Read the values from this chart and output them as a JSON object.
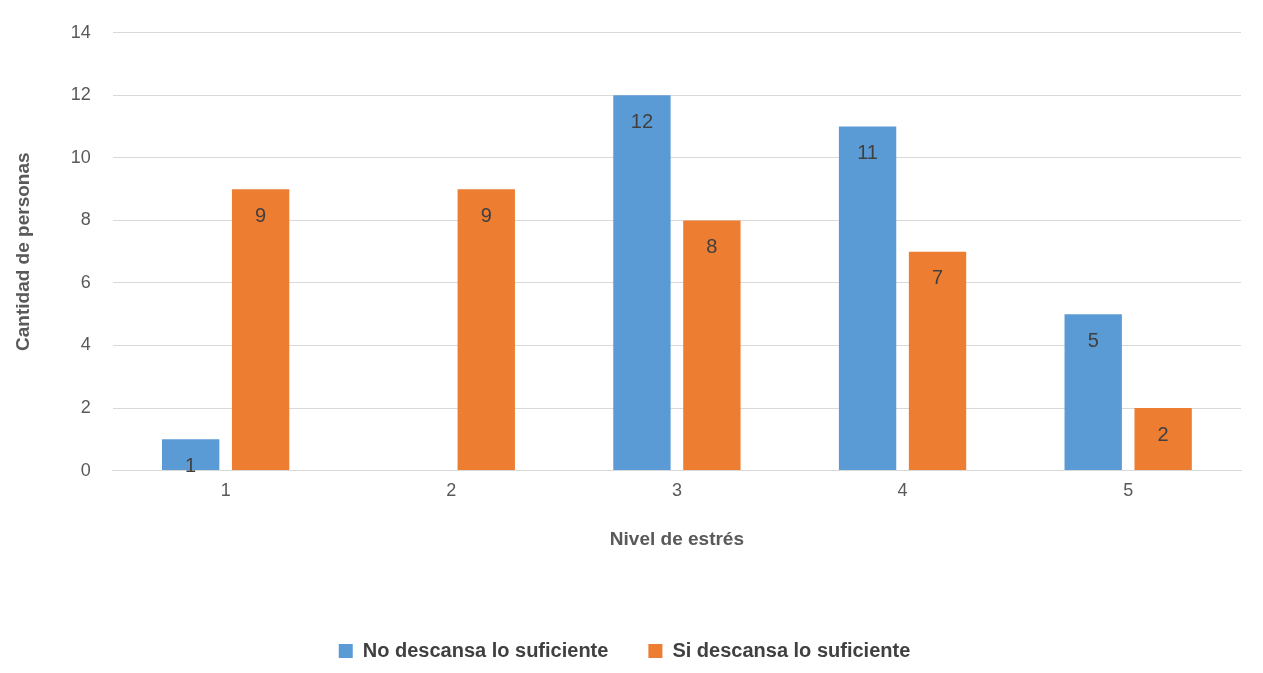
{
  "chart_data": {
    "type": "bar",
    "xlabel": "Nivel de estrés",
    "ylabel": "Cantidad de personas",
    "categories": [
      "1",
      "2",
      "3",
      "4",
      "5"
    ],
    "series": [
      {
        "name": "No descansa lo suficiente",
        "color": "#5b9bd5",
        "values": [
          1,
          null,
          12,
          11,
          5
        ]
      },
      {
        "name": "Si descansa lo suficiente",
        "color": "#ed7d31",
        "values": [
          9,
          9,
          8,
          7,
          2
        ]
      }
    ],
    "ylim": [
      0,
      14
    ],
    "yticks": [
      0,
      2,
      4,
      6,
      8,
      10,
      12,
      14
    ],
    "grid": "y",
    "legend": "bottom",
    "data_labels": true
  }
}
